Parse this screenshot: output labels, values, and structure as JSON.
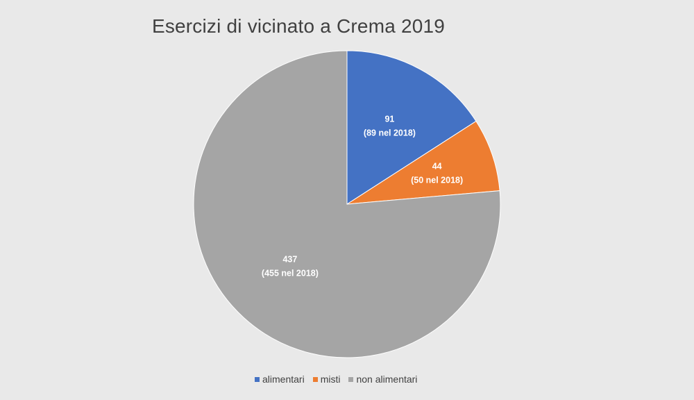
{
  "chart_data": {
    "type": "pie",
    "title": "Esercizi di vicinato a Crema 2019",
    "categories": [
      "alimentari",
      "misti",
      "non alimentari"
    ],
    "values": [
      91,
      44,
      437
    ],
    "labels": [
      {
        "value": "91",
        "note": "(89 nel 2018)"
      },
      {
        "value": "44",
        "note": "(50 nel 2018)"
      },
      {
        "value": "437",
        "note": "(455 nel 2018)"
      }
    ],
    "colors": [
      "#4472c4",
      "#ed7d31",
      "#a5a5a5"
    ],
    "legend_position": "bottom",
    "start_angle": "top, clockwise"
  }
}
